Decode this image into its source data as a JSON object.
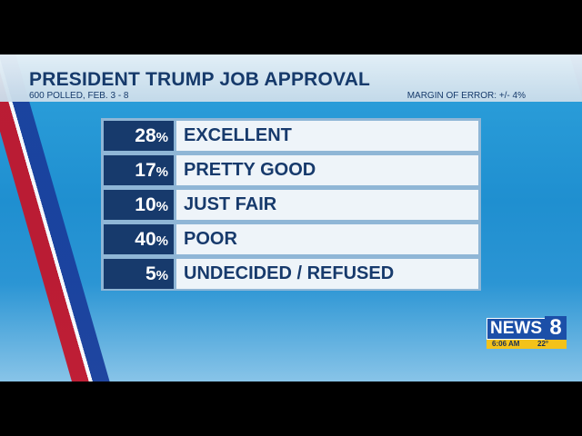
{
  "header": {
    "title": "PRESIDENT TRUMP JOB APPROVAL",
    "subtitle": "600 POLLED, FEB. 3 - 8",
    "margin_of_error": "MARGIN OF ERROR: +/- 4%"
  },
  "chart_data": {
    "type": "table",
    "title": "PRESIDENT TRUMP JOB APPROVAL",
    "subtitle": "600 POLLED, FEB. 3 - 8",
    "categories": [
      "EXCELLENT",
      "PRETTY GOOD",
      "JUST FAIR",
      "POOR",
      "UNDECIDED / REFUSED"
    ],
    "values": [
      28,
      17,
      10,
      40,
      5
    ],
    "value_labels": [
      "28",
      "17",
      "10",
      "40",
      "5"
    ],
    "unit": "%"
  },
  "logo": {
    "brand": "NEWS",
    "channel": "8",
    "time": "6:06 AM",
    "temp": "22°"
  },
  "colors": {
    "navy": "#173a6c",
    "row_bg": "#eef4f9",
    "background_blue": "#1f8fd0",
    "logo_blue": "#1b4fa8",
    "logo_yellow": "#f3c21a"
  }
}
